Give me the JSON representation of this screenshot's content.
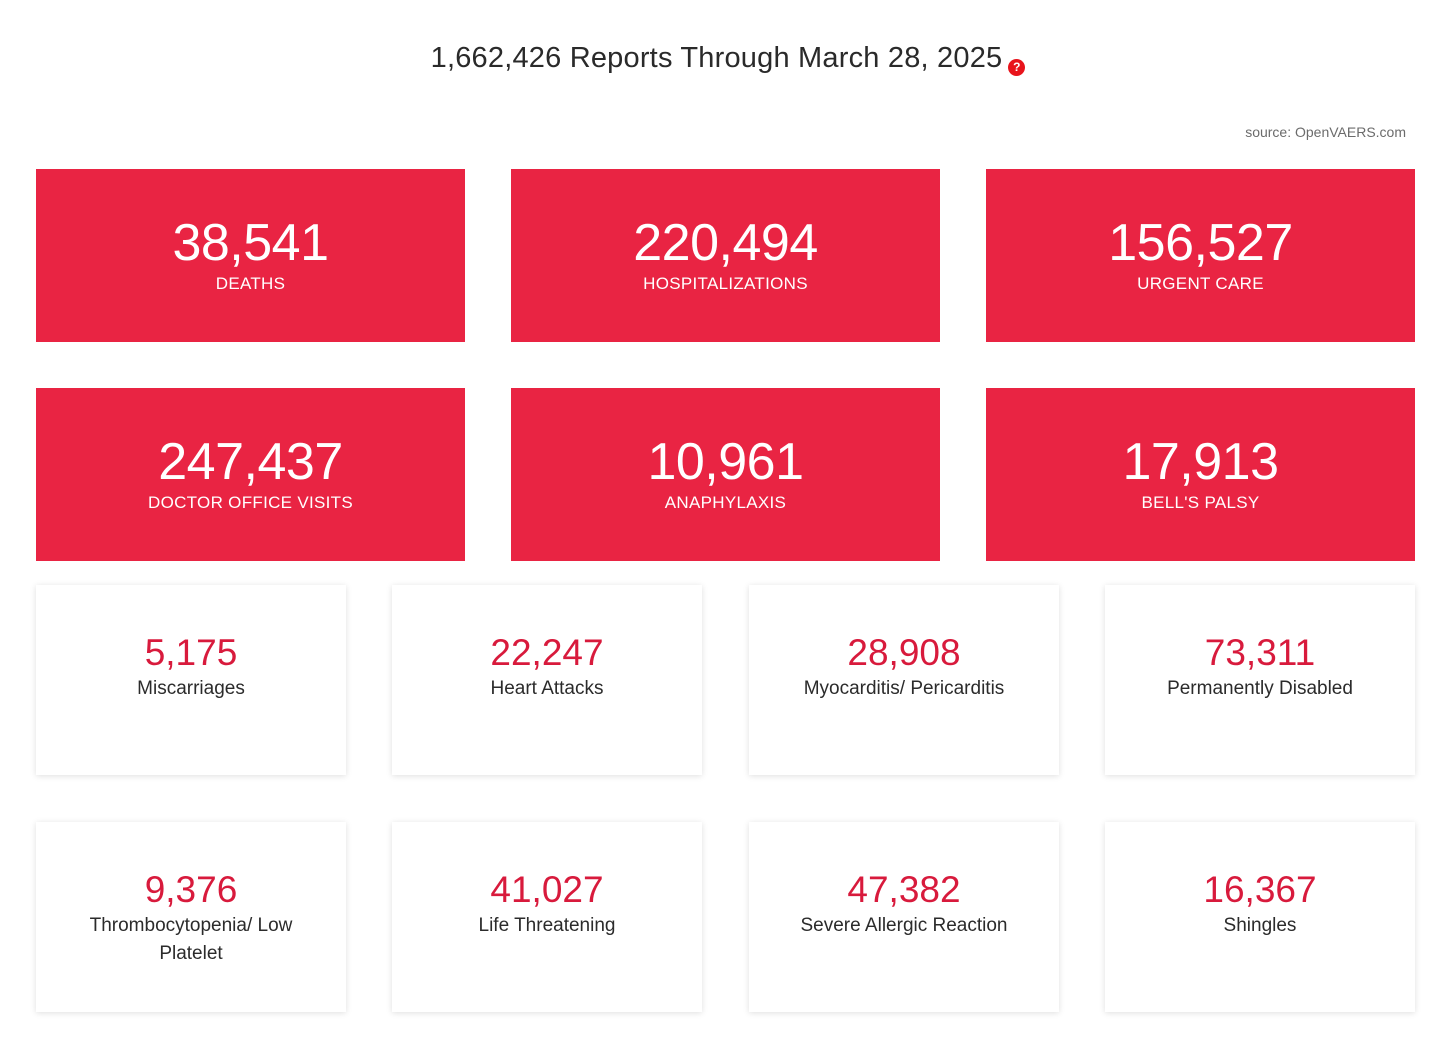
{
  "header": {
    "title": "1,662,426 Reports Through March 28, 2025",
    "help_icon": "?"
  },
  "source": "source: OpenVAERS.com",
  "colors": {
    "accent_red": "#e92443",
    "number_red": "#d81a3c"
  },
  "red_cards": [
    {
      "value": "38,541",
      "label": "DEATHS"
    },
    {
      "value": "220,494",
      "label": "HOSPITALIZATIONS"
    },
    {
      "value": "156,527",
      "label": "URGENT CARE"
    },
    {
      "value": "247,437",
      "label": "DOCTOR OFFICE VISITS"
    },
    {
      "value": "10,961",
      "label": "ANAPHYLAXIS"
    },
    {
      "value": "17,913",
      "label": "BELL'S PALSY"
    }
  ],
  "white_cards": [
    {
      "value": "5,175",
      "label": "Miscarriages"
    },
    {
      "value": "22,247",
      "label": "Heart Attacks"
    },
    {
      "value": "28,908",
      "label": "Myocarditis/ Pericarditis"
    },
    {
      "value": "73,311",
      "label": "Permanently Disabled"
    },
    {
      "value": "9,376",
      "label": "Thrombocytopenia/ Low Platelet"
    },
    {
      "value": "41,027",
      "label": "Life Threatening"
    },
    {
      "value": "47,382",
      "label": "Severe Allergic Reaction"
    },
    {
      "value": "16,367",
      "label": "Shingles"
    }
  ]
}
